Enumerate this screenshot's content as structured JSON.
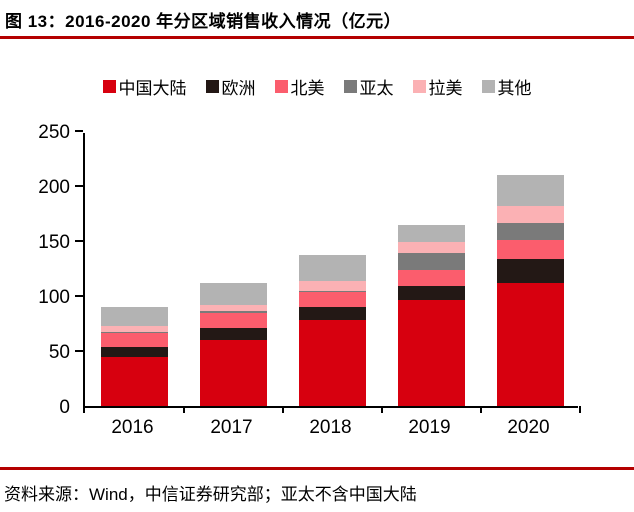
{
  "figure": {
    "title": "图 13：2016-2020 年分区域销售收入情况（亿元）",
    "source_note": "资料来源：Wind，中信证券研究部；亚太不含中国大陆"
  },
  "colors": {
    "accent_rule": "#B40000",
    "axis": "#000000",
    "background": "#FFFFFF"
  },
  "chart_data": {
    "type": "bar",
    "stacked": true,
    "title": "2016-2020 年分区域销售收入情况（亿元）",
    "unit": "亿元",
    "categories": [
      "2016",
      "2017",
      "2018",
      "2019",
      "2020"
    ],
    "series": [
      {
        "name": "中国大陆",
        "color": "#D7000F",
        "values": [
          45,
          60,
          78,
          96,
          112
        ]
      },
      {
        "name": "欧洲",
        "color": "#231815",
        "values": [
          9,
          11,
          12,
          13,
          22
        ]
      },
      {
        "name": "北美",
        "color": "#FB5D6D",
        "values": [
          12,
          14,
          14,
          15,
          17
        ]
      },
      {
        "name": "亚太",
        "color": "#7A7A7A",
        "values": [
          1,
          1,
          1,
          15,
          15
        ]
      },
      {
        "name": "拉美",
        "color": "#FBB1B4",
        "values": [
          6,
          6,
          9,
          10,
          16
        ]
      },
      {
        "name": "其他",
        "color": "#B3B3B3",
        "values": [
          17,
          20,
          23,
          16,
          28
        ]
      }
    ],
    "totals": [
      90,
      112,
      137,
      165,
      210
    ],
    "ylim": [
      0,
      250
    ],
    "yticks": [
      0,
      50,
      100,
      150,
      200,
      250
    ],
    "grid": false,
    "legend_position": "top"
  }
}
